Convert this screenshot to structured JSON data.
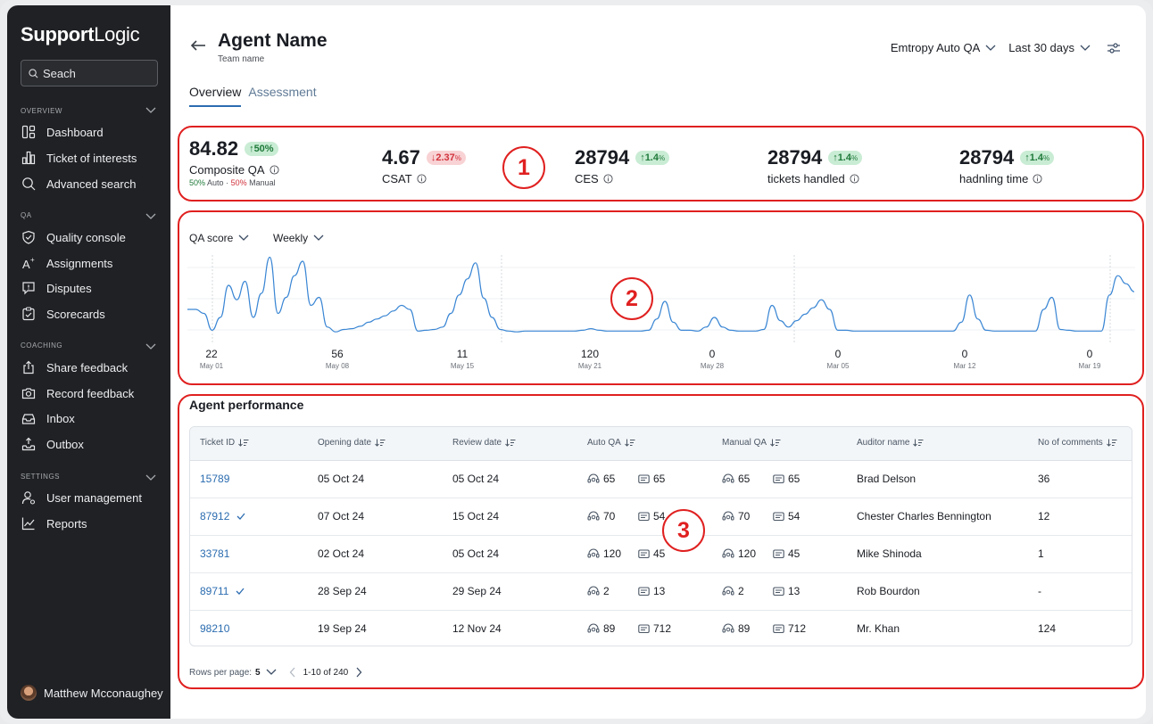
{
  "sidebar": {
    "logo_bold": "Support",
    "logo_light": "Logic",
    "search_placeholder": "Seach",
    "sections": [
      {
        "label": "OVERVIEW",
        "items": [
          {
            "label": "Dashboard",
            "icon": "dashboard-icon"
          },
          {
            "label": "Ticket of interests",
            "icon": "ticket-icon"
          },
          {
            "label": "Advanced search",
            "icon": "search-icon"
          }
        ]
      },
      {
        "label": "QA",
        "items": [
          {
            "label": "Quality console",
            "icon": "shield-check-icon"
          },
          {
            "label": "Assignments",
            "icon": "assign-icon"
          },
          {
            "label": "Disputes",
            "icon": "dispute-icon"
          },
          {
            "label": "Scorecards",
            "icon": "scorecard-icon"
          }
        ]
      },
      {
        "label": "COACHING",
        "items": [
          {
            "label": "Share feedback",
            "icon": "share-icon"
          },
          {
            "label": "Record feedback",
            "icon": "camera-icon"
          },
          {
            "label": "Inbox",
            "icon": "inbox-icon"
          },
          {
            "label": "Outbox",
            "icon": "outbox-icon"
          }
        ]
      },
      {
        "label": "SETTINGS",
        "items": [
          {
            "label": "User management",
            "icon": "user-icon"
          },
          {
            "label": "Reports",
            "icon": "chart-icon"
          }
        ]
      }
    ],
    "user_name": "Matthew Mcconaughey"
  },
  "header": {
    "title": "Agent Name",
    "subtitle": "Team name",
    "qa_source": "Emtropy Auto QA",
    "date_range": "Last 30 days"
  },
  "tabs": [
    {
      "label": "Overview",
      "active": true
    },
    {
      "label": "Assessment",
      "active": false
    }
  ],
  "annotations": [
    "1",
    "2",
    "3"
  ],
  "kpis": [
    {
      "value": "84.82",
      "delta": "50%",
      "delta_arrow": "↑",
      "direction": "up",
      "label": "Composite QA",
      "split_auto": "50%",
      "split_auto_label": "Auto",
      "split_sep": "·",
      "split_manual": "50%",
      "split_manual_label": "Manual"
    },
    {
      "value": "4.67",
      "delta": "2.37",
      "delta_unit": "%",
      "delta_arrow": "↓",
      "direction": "down",
      "label": "CSAT"
    },
    {
      "value": "28794",
      "delta": "1.4",
      "delta_unit": "%",
      "delta_arrow": "↑",
      "direction": "up",
      "label": "CES"
    },
    {
      "value": "28794",
      "delta": "1.4",
      "delta_unit": "%",
      "delta_arrow": "↑",
      "direction": "up",
      "label": "tickets handled"
    },
    {
      "value": "28794",
      "delta": "1.4",
      "delta_unit": "%",
      "delta_arrow": "↑",
      "direction": "up",
      "label": "hadnling time"
    }
  ],
  "chart_controls": {
    "metric": "QA score",
    "interval": "Weekly"
  },
  "chart_data": {
    "type": "line",
    "title": "",
    "xlabel": "",
    "ylabel": "",
    "x_ticks": [
      {
        "value": "22",
        "date": "May 01"
      },
      {
        "value": "56",
        "date": "May 08"
      },
      {
        "value": "11",
        "date": "May 15"
      },
      {
        "value": "120",
        "date": "May 21"
      },
      {
        "value": "0",
        "date": "May 28"
      },
      {
        "value": "0",
        "date": "Mar 05"
      },
      {
        "value": "0",
        "date": "Mar 12"
      },
      {
        "value": "0",
        "date": "Mar 19"
      }
    ],
    "series": [
      {
        "color": "#3a86d4",
        "values": [
          30,
          30,
          25,
          4,
          20,
          60,
          42,
          65,
          20,
          50,
          95,
          25,
          45,
          72,
          90,
          35,
          45,
          8,
          2,
          5,
          6,
          9,
          14,
          18,
          22,
          28,
          35,
          30,
          3,
          4,
          5,
          8,
          25,
          48,
          68,
          88,
          44,
          20,
          5,
          3,
          2,
          3,
          3,
          3,
          3,
          3,
          3,
          3,
          4,
          6,
          4,
          3,
          3,
          3,
          3,
          3,
          4,
          18,
          40,
          14,
          4,
          4,
          3,
          8,
          20,
          8,
          4,
          3,
          3,
          3,
          5,
          35,
          16,
          8,
          16,
          24,
          32,
          42,
          30,
          4,
          4,
          3,
          3,
          3,
          3,
          3,
          3,
          3,
          3,
          3,
          3,
          3,
          3,
          3,
          14,
          48,
          18,
          4,
          3,
          3,
          3,
          3,
          3,
          3,
          30,
          45,
          5,
          4,
          3,
          3,
          3,
          3,
          48,
          72,
          62,
          52
        ]
      }
    ]
  },
  "performance": {
    "title": "Agent performance",
    "columns": [
      "Ticket ID",
      "Opening date",
      "Review date",
      "Auto QA",
      "Manual QA",
      "Auditor name",
      "No of comments"
    ],
    "rows": [
      {
        "id": "15789",
        "checked": false,
        "open": "05 Oct 24",
        "review": "05 Oct 24",
        "auto_a": "65",
        "auto_b": "65",
        "man_a": "65",
        "man_b": "65",
        "auditor": "Brad Delson",
        "comments": "36"
      },
      {
        "id": "87912",
        "checked": true,
        "open": "07 Oct 24",
        "review": "15 Oct 24",
        "auto_a": "70",
        "auto_b": "54",
        "man_a": "70",
        "man_b": "54",
        "auditor": "Chester Charles Bennington",
        "comments": "12"
      },
      {
        "id": "33781",
        "checked": false,
        "open": "02 Oct 24",
        "review": "05 Oct 24",
        "auto_a": "120",
        "auto_b": "45",
        "man_a": "120",
        "man_b": "45",
        "auditor": "Mike Shinoda",
        "comments": "1"
      },
      {
        "id": "89711",
        "checked": true,
        "open": "28 Sep 24",
        "review": "29 Sep 24",
        "auto_a": "2",
        "auto_b": "13",
        "man_a": "2",
        "man_b": "13",
        "auditor": "Rob Bourdon",
        "comments": "-"
      },
      {
        "id": "98210",
        "checked": false,
        "open": "19 Sep 24",
        "review": "12 Nov 24",
        "auto_a": "89",
        "auto_b": "712",
        "man_a": "89",
        "man_b": "712",
        "auditor": "Mr. Khan",
        "comments": "124"
      }
    ],
    "rows_per_page_label": "Rows per page:",
    "rows_per_page": "5",
    "range": "1-10 of 240"
  }
}
